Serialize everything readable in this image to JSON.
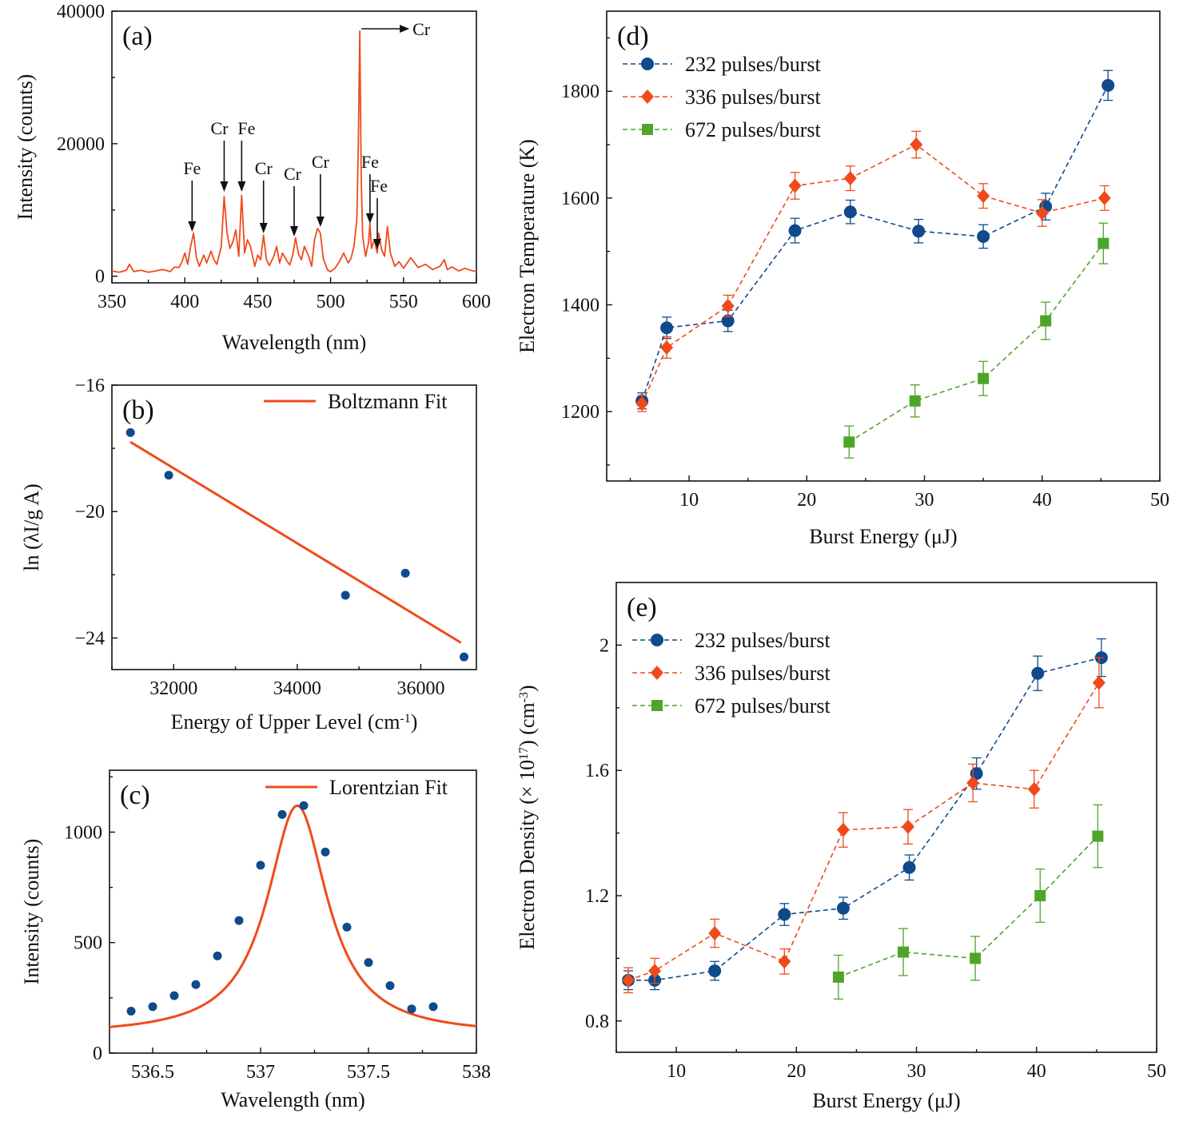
{
  "colors": {
    "blue": "#0e4a8c",
    "orange": "#f04a1a",
    "green": "#4fa52a",
    "axis": "#111111"
  },
  "chart_data": [
    {
      "id": "a",
      "panel_label": "(a)",
      "type": "line",
      "xlabel": "Wavelength (nm)",
      "ylabel": "Intensity (counts)",
      "xlim": [
        350,
        600
      ],
      "ylim": [
        -1000,
        40000
      ],
      "xticks": [
        350,
        400,
        450,
        500,
        550,
        600
      ],
      "yticks": [
        0,
        20000,
        40000
      ],
      "series": [
        {
          "name": "LIBS spectrum",
          "x": [
            350,
            355,
            360,
            362,
            365,
            370,
            375,
            380,
            385,
            390,
            393,
            396,
            398,
            400,
            402,
            404,
            406,
            408,
            410,
            413,
            415,
            418,
            420,
            422,
            425,
            427,
            429,
            431,
            433,
            435,
            437,
            439,
            441,
            443,
            445,
            448,
            450,
            452,
            454,
            456,
            458,
            461,
            463,
            465,
            467,
            470,
            472,
            474,
            476,
            478,
            480,
            482,
            485,
            487,
            489,
            491,
            493,
            495,
            498,
            500,
            503,
            506,
            509,
            512,
            514,
            516,
            518,
            519,
            520,
            521,
            522,
            524,
            526,
            527,
            528,
            530,
            532,
            533,
            535,
            537,
            539,
            541,
            544,
            547,
            550,
            555,
            560,
            565,
            570,
            575,
            578,
            580,
            583,
            588,
            592,
            596,
            600
          ],
          "values": [
            800,
            600,
            900,
            1800,
            700,
            900,
            600,
            800,
            1000,
            700,
            1400,
            1300,
            2200,
            3500,
            1800,
            4500,
            6500,
            2800,
            1500,
            3200,
            2000,
            3800,
            2500,
            1800,
            4500,
            12000,
            6500,
            4200,
            5200,
            7000,
            3000,
            12200,
            3500,
            5500,
            4500,
            1500,
            3200,
            2500,
            6200,
            2500,
            1600,
            3000,
            4500,
            2000,
            3500,
            2300,
            1700,
            3200,
            5800,
            3300,
            2500,
            4500,
            3000,
            1500,
            5500,
            7200,
            6500,
            2600,
            900,
            700,
            1200,
            2200,
            3500,
            2000,
            2700,
            4500,
            8500,
            20000,
            37000,
            15000,
            6000,
            3000,
            5000,
            8000,
            4200,
            5500,
            3500,
            6500,
            4000,
            3000,
            7500,
            3500,
            1500,
            2200,
            1200,
            2800,
            1300,
            1800,
            1000,
            1500,
            2500,
            1000,
            1400,
            800,
            1200,
            900,
            700
          ]
        }
      ],
      "annotations": [
        {
          "text": "Fe",
          "x": 405
        },
        {
          "text": "Cr",
          "x": 427
        },
        {
          "text": "Fe",
          "x": 439
        },
        {
          "text": "Cr",
          "x": 454
        },
        {
          "text": "Cr",
          "x": 475
        },
        {
          "text": "Cr",
          "x": 493
        },
        {
          "text": "Fe",
          "x": 527
        },
        {
          "text": "Fe",
          "x": 532
        },
        {
          "text": "Cr",
          "x": 520,
          "arrow": "right"
        }
      ]
    },
    {
      "id": "b",
      "panel_label": "(b)",
      "type": "scatter",
      "xlabel": "Energy of Upper Level (cm",
      "xlabel_sup": "-1",
      "xlabel_end": ")",
      "ylabel": "ln (λI/g A)",
      "xlim": [
        31000,
        36900
      ],
      "ylim": [
        -25.0,
        -16.0
      ],
      "xticks": [
        32000,
        34000,
        36000
      ],
      "yticks": [
        -16,
        -20,
        -24
      ],
      "ytick_labels": [
        "−16",
        "−20",
        "−24"
      ],
      "legend": [
        "Boltzmann Fit"
      ],
      "legend_position": "top-right",
      "points": {
        "x": [
          31300,
          31920,
          34780,
          35750,
          36700
        ],
        "y": [
          -17.5,
          -18.85,
          -22.65,
          -21.95,
          -24.6
        ]
      },
      "fit": {
        "name": "Boltzmann Fit",
        "x": [
          31300,
          36650
        ],
        "y": [
          -17.8,
          -24.15
        ]
      }
    },
    {
      "id": "c",
      "panel_label": "(c)",
      "type": "scatter",
      "xlabel": "Wavelength (nm)",
      "ylabel": "Intensity (counts)",
      "xlim": [
        536.3,
        538.0
      ],
      "ylim": [
        0,
        1280
      ],
      "xticks": [
        536.5,
        537,
        537.5,
        538
      ],
      "xtick_labels": [
        "536.5",
        "537",
        "537.5",
        "538"
      ],
      "yticks": [
        0,
        500,
        1000
      ],
      "legend": [
        "Lorentzian Fit"
      ],
      "legend_position": "top-right",
      "points": {
        "x": [
          536.4,
          536.5,
          536.6,
          536.7,
          536.8,
          536.9,
          537.0,
          537.1,
          537.2,
          537.3,
          537.4,
          537.5,
          537.6,
          537.7,
          537.8
        ],
        "y": [
          190,
          210,
          260,
          310,
          440,
          600,
          850,
          1080,
          1120,
          910,
          570,
          410,
          305,
          200,
          210
        ]
      },
      "fit": {
        "name": "Lorentzian Fit",
        "model": "lorentzian",
        "center": 537.17,
        "fwhm": 0.34,
        "amplitude": 1040,
        "offset": 80
      }
    },
    {
      "id": "d",
      "panel_label": "(d)",
      "type": "line",
      "xlabel": "Burst Energy (μJ)",
      "ylabel": "Electron Temperature (K)",
      "xlim": [
        3,
        50
      ],
      "ylim": [
        1070,
        1950
      ],
      "xticks": [
        10,
        20,
        30,
        40,
        50
      ],
      "yticks": [
        1200,
        1400,
        1600,
        1800
      ],
      "legend_position": "top-left",
      "series": [
        {
          "name": "232 pulses/burst",
          "marker": "circle",
          "color": "blue",
          "x": [
            6,
            8.1,
            13.3,
            19,
            23.7,
            29.5,
            35,
            40.3,
            45.6
          ],
          "values": [
            1220,
            1357,
            1370,
            1539,
            1574,
            1538,
            1528,
            1584,
            1811
          ],
          "err": [
            15,
            20,
            20,
            23,
            22,
            22,
            22,
            25,
            28
          ]
        },
        {
          "name": "336 pulses/burst",
          "marker": "diamond",
          "color": "orange",
          "x": [
            6,
            8.1,
            13.3,
            19,
            23.7,
            29.3,
            35,
            40,
            45.3
          ],
          "values": [
            1215,
            1320,
            1398,
            1623,
            1637,
            1700,
            1604,
            1572,
            1600
          ],
          "err": [
            15,
            20,
            20,
            25,
            23,
            25,
            23,
            25,
            23
          ]
        },
        {
          "name": "672 pulses/burst",
          "marker": "square",
          "color": "green",
          "x": [
            23.6,
            29.2,
            35,
            40.3,
            45.2
          ],
          "values": [
            1143,
            1220,
            1262,
            1370,
            1515
          ],
          "err": [
            30,
            30,
            32,
            35,
            38
          ]
        }
      ]
    },
    {
      "id": "e",
      "panel_label": "(e)",
      "type": "line",
      "xlabel": "Burst Energy (μJ)",
      "ylabel": "Electron Density (× 10",
      "ylabel_sup": "17",
      "ylabel_mid": ") (cm",
      "ylabel_sup2": "-3",
      "ylabel_end": ")",
      "xlim": [
        5,
        50
      ],
      "ylim": [
        0.7,
        2.2
      ],
      "xticks": [
        10,
        20,
        30,
        40,
        50
      ],
      "yticks": [
        0.8,
        1.2,
        1.6,
        2.0
      ],
      "ytick_labels": [
        "0.8",
        "1.2",
        "1.6",
        "2"
      ],
      "legend_position": "top-left",
      "series": [
        {
          "name": "232 pulses/burst",
          "marker": "circle",
          "color": "blue",
          "x": [
            6,
            8.2,
            13.2,
            19,
            23.9,
            29.4,
            35,
            40.1,
            45.4
          ],
          "values": [
            0.93,
            0.93,
            0.96,
            1.14,
            1.16,
            1.29,
            1.59,
            1.91,
            1.96
          ],
          "err": [
            0.03,
            0.03,
            0.03,
            0.035,
            0.035,
            0.04,
            0.05,
            0.055,
            0.06
          ]
        },
        {
          "name": "336 pulses/burst",
          "marker": "diamond",
          "color": "orange",
          "x": [
            6,
            8.2,
            13.2,
            19,
            23.9,
            29.3,
            34.7,
            39.8,
            45.2
          ],
          "values": [
            0.93,
            0.96,
            1.08,
            0.99,
            1.41,
            1.42,
            1.56,
            1.54,
            1.88
          ],
          "err": [
            0.04,
            0.04,
            0.045,
            0.04,
            0.055,
            0.055,
            0.06,
            0.06,
            0.08
          ]
        },
        {
          "name": "672 pulses/burst",
          "marker": "square",
          "color": "green",
          "x": [
            23.5,
            28.9,
            34.9,
            40.3,
            45.1
          ],
          "values": [
            0.94,
            1.02,
            1.0,
            1.2,
            1.39
          ],
          "err": [
            0.07,
            0.075,
            0.07,
            0.085,
            0.1
          ]
        }
      ]
    }
  ]
}
